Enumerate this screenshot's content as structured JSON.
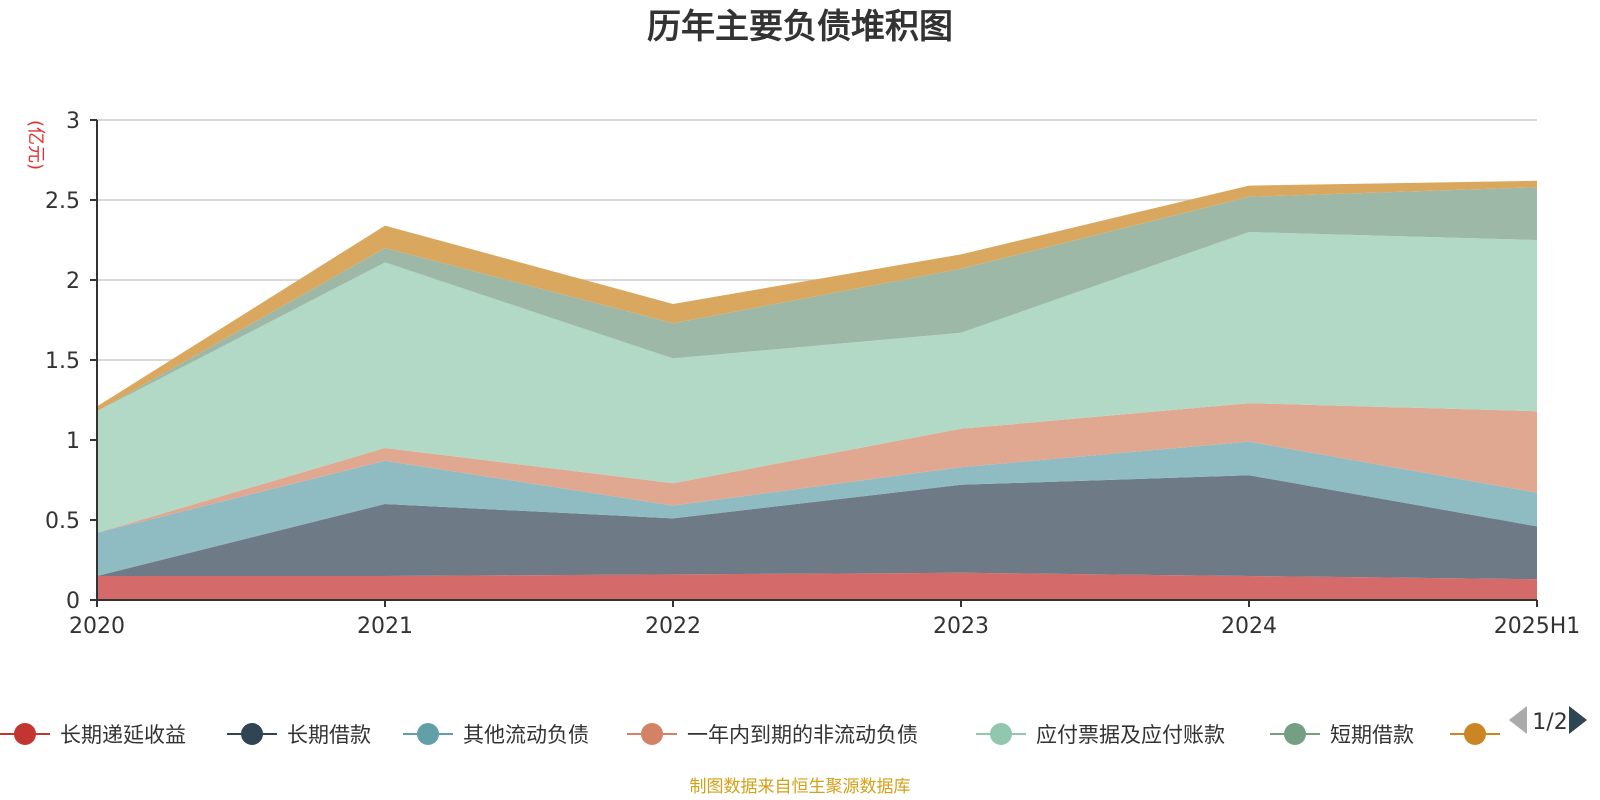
{
  "chart_data": {
    "type": "area",
    "stacked": true,
    "title": "历年主要负债堆积图",
    "unit": "(亿元)",
    "categories": [
      "2020",
      "2021",
      "2022",
      "2023",
      "2024",
      "2025H1"
    ],
    "y_ticks": [
      "0",
      "0.5",
      "1",
      "1.5",
      "2",
      "2.5",
      "3"
    ],
    "ylim": [
      0,
      3
    ],
    "grid": true,
    "legend_position": "bottom",
    "series": [
      {
        "name": "长期递延收益",
        "color": "#d46a6a",
        "legend_color": "#c23531",
        "values": [
          0.15,
          0.15,
          0.16,
          0.17,
          0.15,
          0.13
        ]
      },
      {
        "name": "长期借款",
        "color": "#6e7b86",
        "legend_color": "#2f4554",
        "values": [
          0.0,
          0.45,
          0.35,
          0.55,
          0.63,
          0.33
        ]
      },
      {
        "name": "其他流动负债",
        "color": "#8fbbc3",
        "legend_color": "#61a0a8",
        "values": [
          0.27,
          0.27,
          0.08,
          0.11,
          0.21,
          0.21
        ]
      },
      {
        "name": "一年内到期的非流动负债",
        "color": "#e0a791",
        "legend_color": "#d48265",
        "values": [
          0.0,
          0.08,
          0.14,
          0.24,
          0.24,
          0.51
        ]
      },
      {
        "name": "应付票据及应付账款",
        "color": "#b2d9c6",
        "legend_color": "#91c7ae",
        "values": [
          0.76,
          1.16,
          0.78,
          0.6,
          1.07,
          1.07
        ]
      },
      {
        "name": "短期借款",
        "color": "#9db8a6",
        "legend_color": "#749f83",
        "values": [
          0.0,
          0.09,
          0.22,
          0.4,
          0.22,
          0.33
        ]
      },
      {
        "name": "",
        "color": "#d9a85e",
        "legend_color": "#ca8622",
        "values": [
          0.03,
          0.14,
          0.12,
          0.09,
          0.07,
          0.04
        ]
      }
    ]
  },
  "legend": {
    "page": "1/2"
  },
  "source": "制图数据来自恒生聚源数据库"
}
